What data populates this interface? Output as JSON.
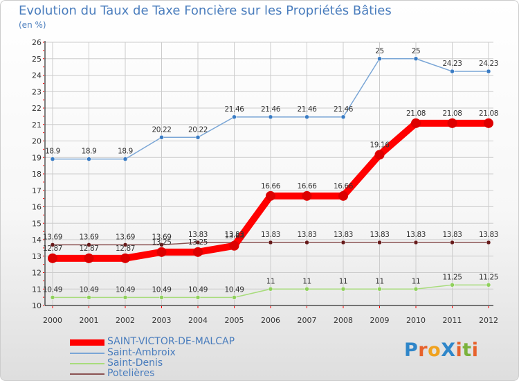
{
  "page": {
    "title": "Evolution du Taux de Taxe Foncière sur les Propriétés Bâties",
    "unit": "(en %)",
    "logo": "ProXiti"
  },
  "colors": {
    "title": "#4a7dbd",
    "grid": "#cccccc",
    "axis": "#000000",
    "tick_marks": "#ff0000"
  },
  "chart_data": {
    "type": "line",
    "title": "Evolution du Taux de Taxe Foncière sur les Propriétés Bâties",
    "ylabel": "(en %)",
    "xlabel": "",
    "x": [
      "2000",
      "2001",
      "2002",
      "2003",
      "2004",
      "2005",
      "2006",
      "2007",
      "2008",
      "2009",
      "2010",
      "2011",
      "2012"
    ],
    "ylim": [
      10,
      26
    ],
    "yticks": [
      10,
      11,
      12,
      13,
      14,
      15,
      16,
      17,
      18,
      19,
      20,
      21,
      22,
      23,
      24,
      25,
      26
    ],
    "grid": true,
    "legend_position": "bottom-left",
    "series": [
      {
        "name": "SAINT-VICTOR-DE-MALCAP",
        "color": "#ff0000",
        "marker_color": "#dd0000",
        "emphasis": true,
        "values": [
          12.87,
          12.87,
          12.87,
          13.25,
          13.25,
          13.63,
          16.66,
          16.66,
          16.66,
          19.16,
          21.08,
          21.08,
          21.08
        ],
        "labels": [
          "12.87",
          "12.87",
          "12.87",
          "13.25",
          "13.25",
          "13.63",
          "16.66",
          "16.66",
          "16.66",
          "19.16",
          "21.08",
          "21.08",
          "21.08"
        ]
      },
      {
        "name": "Saint-Ambroix",
        "color": "#7aa6d6",
        "marker_color": "#3a7cc4",
        "emphasis": false,
        "values": [
          18.9,
          18.9,
          18.9,
          20.22,
          20.22,
          21.46,
          21.46,
          21.46,
          21.46,
          25,
          25,
          24.23,
          24.23
        ],
        "labels": [
          "18.9",
          "18.9",
          "18.9",
          "20.22",
          "20.22",
          "21.46",
          "21.46",
          "21.46",
          "21.46",
          "25",
          "25",
          "24.23",
          "24.23"
        ]
      },
      {
        "name": "Saint-Denis",
        "color": "#a8dc7c",
        "marker_color": "#8fd05c",
        "emphasis": false,
        "values": [
          10.49,
          10.49,
          10.49,
          10.49,
          10.49,
          10.49,
          11,
          11,
          11,
          11,
          11,
          11.25,
          11.25
        ],
        "labels": [
          "10.49",
          "10.49",
          "10.49",
          "10.49",
          "10.49",
          "10.49",
          "11",
          "11",
          "11",
          "11",
          "11",
          "11.25",
          "11.25"
        ]
      },
      {
        "name": "Potelières",
        "color": "#8a5252",
        "marker_color": "#661a1a",
        "emphasis": false,
        "values": [
          13.69,
          13.69,
          13.69,
          13.69,
          13.83,
          13.83,
          13.83,
          13.83,
          13.83,
          13.83,
          13.83,
          13.83,
          13.83
        ],
        "labels": [
          "13.69",
          "13.69",
          "13.69",
          "13.69",
          "13.83",
          "13.83",
          "13.83",
          "13.83",
          "13.83",
          "13.83",
          "13.83",
          "13.83",
          "13.83"
        ]
      }
    ]
  }
}
